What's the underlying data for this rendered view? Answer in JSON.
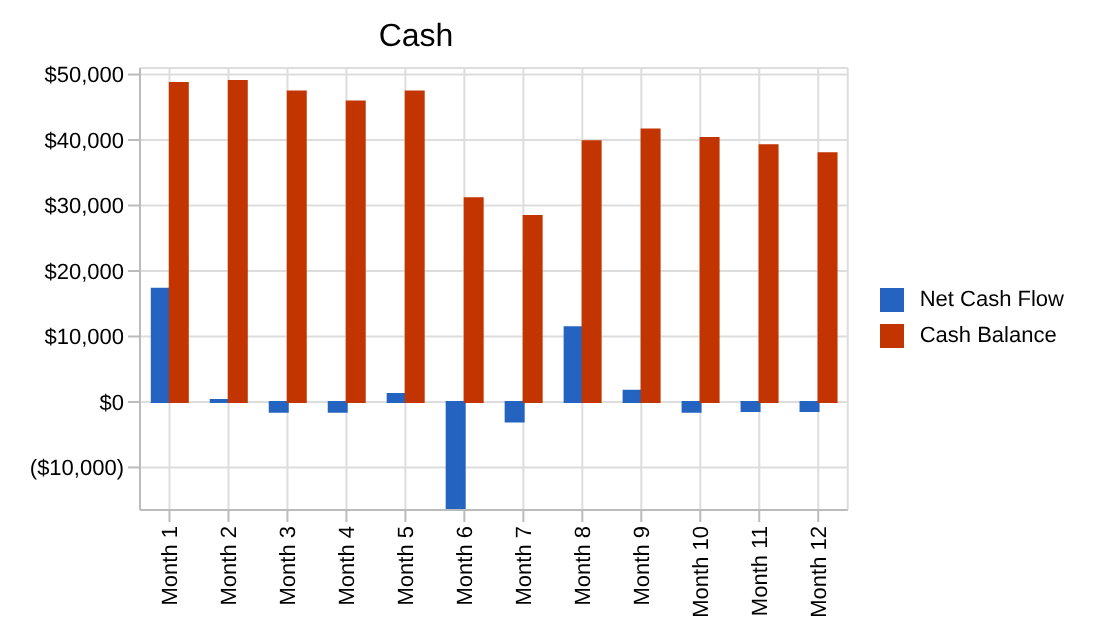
{
  "chart_data": {
    "type": "bar",
    "title": "Cash",
    "categories": [
      "Month 1",
      "Month 2",
      "Month 3",
      "Month 4",
      "Month 5",
      "Month 6",
      "Month 7",
      "Month 8",
      "Month 9",
      "Month 10",
      "Month 11",
      "Month 12"
    ],
    "series": [
      {
        "name": "Net Cash Flow",
        "color": "#2463c0",
        "values": [
          17300,
          300,
          -1500,
          -1500,
          1200,
          -16300,
          -3000,
          11400,
          1700,
          -1500,
          -1400,
          -1400
        ]
      },
      {
        "name": "Cash Balance",
        "color": "#c33500",
        "values": [
          48700,
          49000,
          47400,
          45900,
          47400,
          31100,
          28400,
          39800,
          41600,
          40300,
          39200,
          38000
        ]
      }
    ],
    "ylim": [
      -16500,
      51000
    ],
    "yticks": [
      {
        "value": -10000,
        "label": "($10,000)"
      },
      {
        "value": 0,
        "label": "$0"
      },
      {
        "value": 10000,
        "label": "$10,000"
      },
      {
        "value": 20000,
        "label": "$20,000"
      },
      {
        "value": 30000,
        "label": "$30,000"
      },
      {
        "value": 40000,
        "label": "$40,000"
      },
      {
        "value": 50000,
        "label": "$50,000"
      }
    ],
    "grid": true,
    "legend": "right"
  }
}
